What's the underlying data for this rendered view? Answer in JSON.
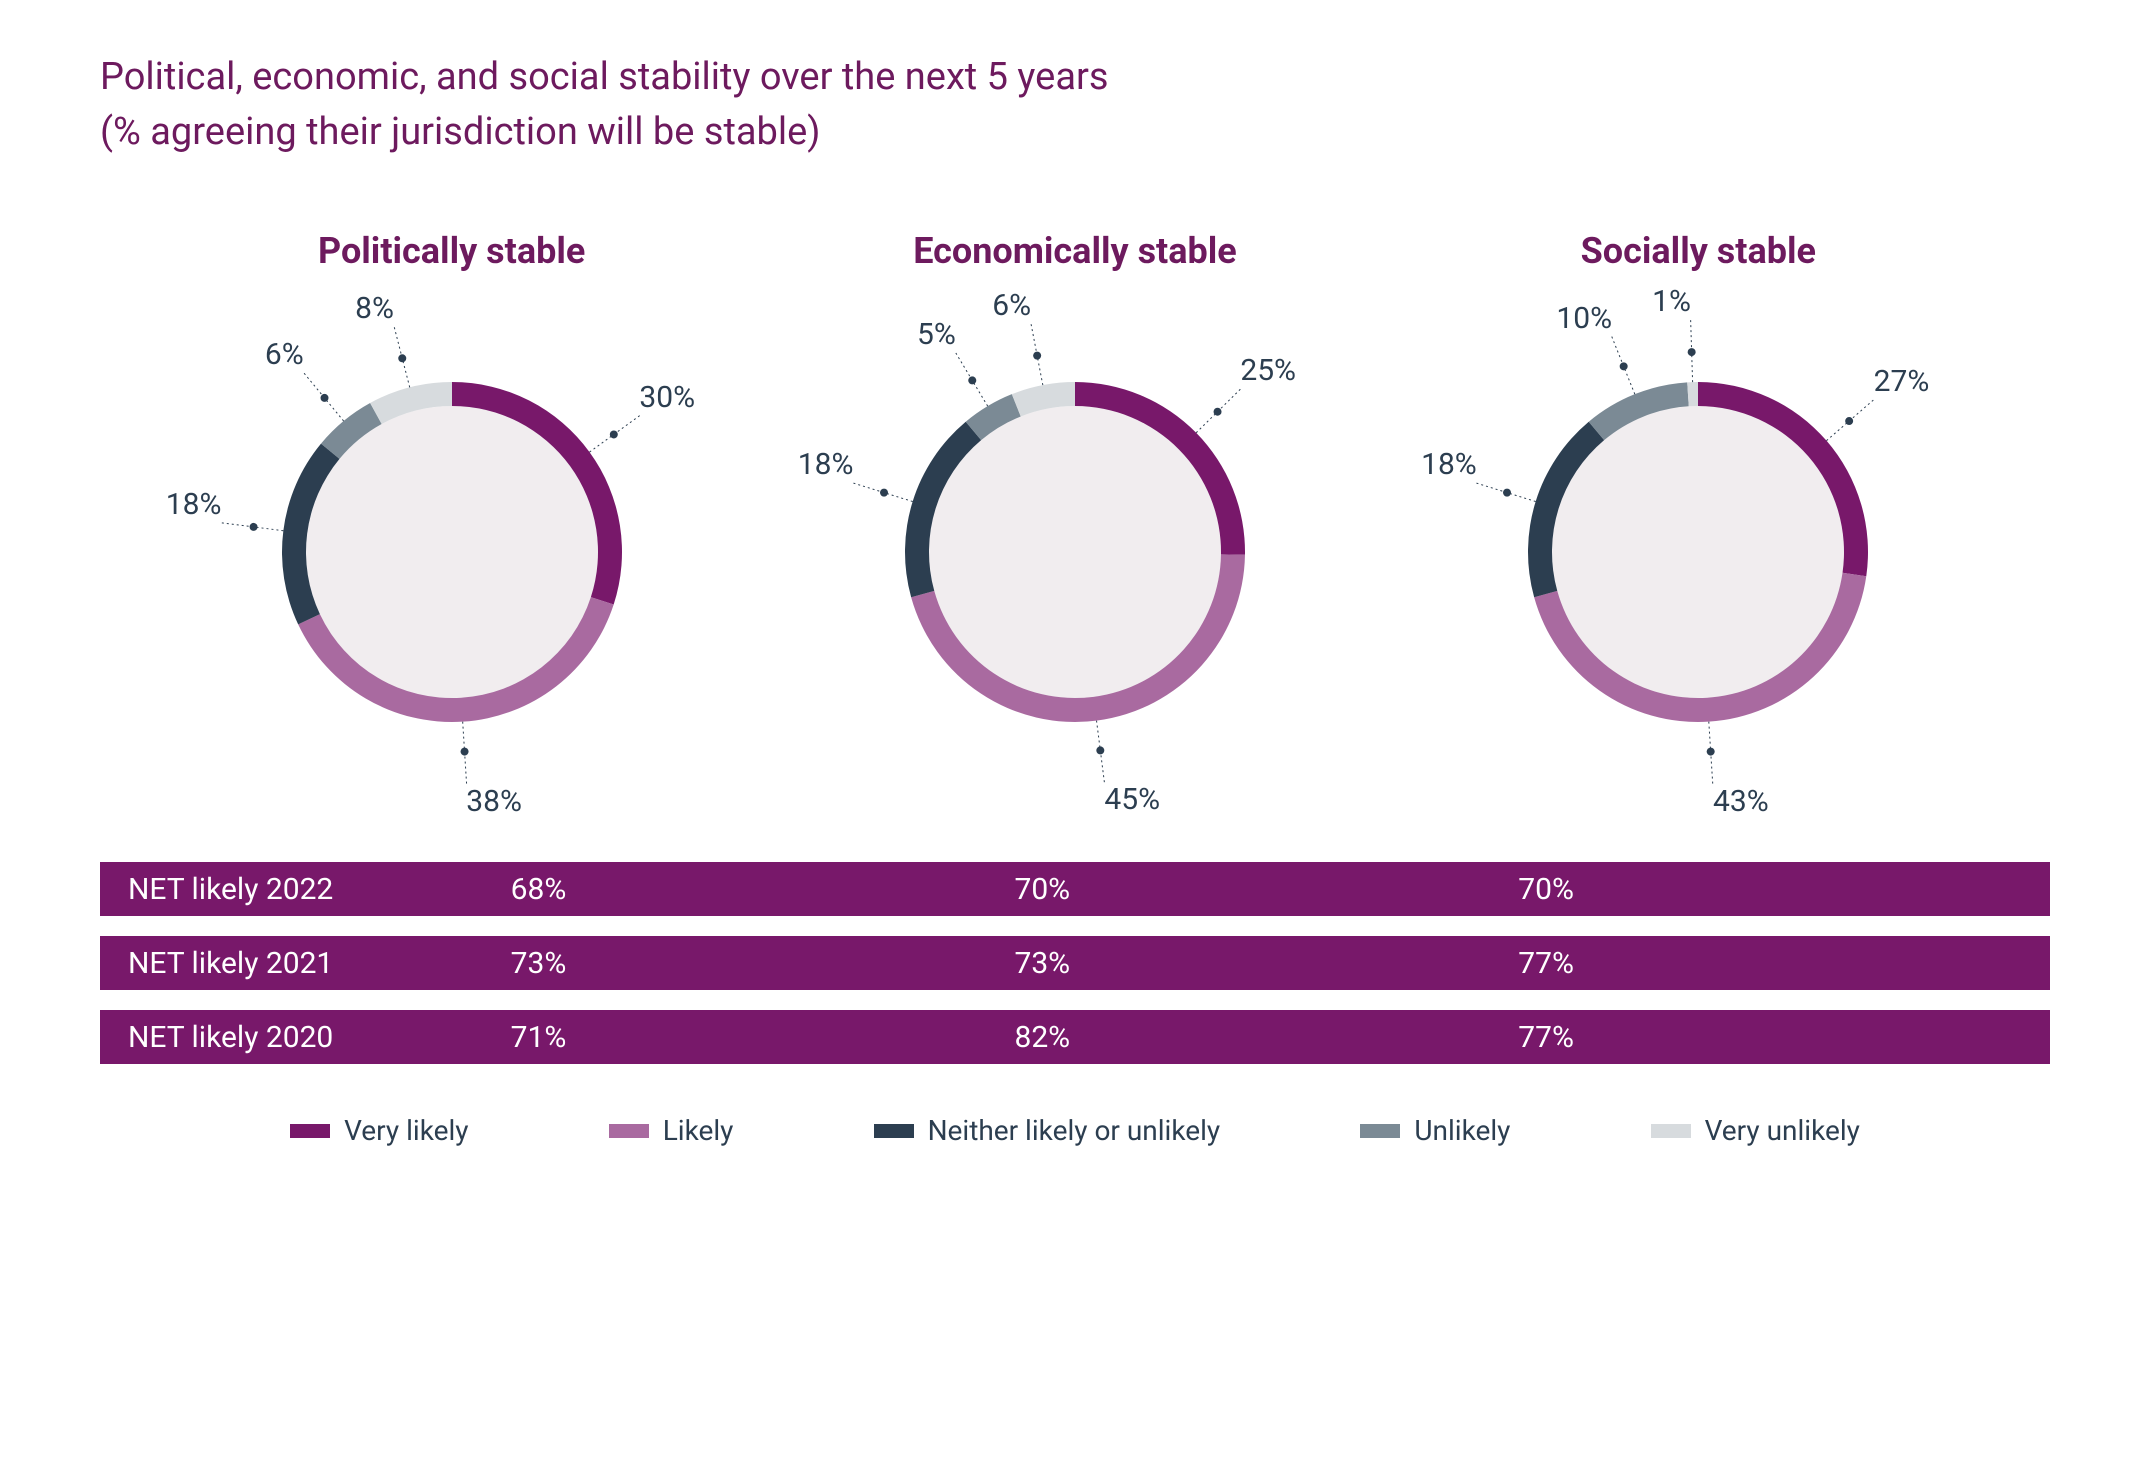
{
  "title_line1": "Political, economic, and social stability over the next 5 years",
  "title_line2": "(% agreeing their jurisdiction will be stable)",
  "title_color": "#6d1a5e",
  "chart_title_color": "#6d1a5e",
  "label_text_color": "#2c3e50",
  "background_color": "#ffffff",
  "donut_inner_color": "#f1edef",
  "leader_color": "#2c3e50",
  "categories": {
    "very_likely": {
      "label": "Very likely",
      "color": "#78186a"
    },
    "likely": {
      "label": "Likely",
      "color": "#a96aa0"
    },
    "neither": {
      "label": "Neither likely or unlikely",
      "color": "#2c3e50"
    },
    "unlikely": {
      "label": "Unlikely",
      "color": "#7b8a95"
    },
    "very_unlikely": {
      "label": "Very unlikely",
      "color": "#d7dbde"
    }
  },
  "charts": [
    {
      "title": "Politically stable",
      "segments": [
        {
          "cat": "very_likely",
          "value": 30,
          "label": "30%"
        },
        {
          "cat": "likely",
          "value": 38,
          "label": "38%"
        },
        {
          "cat": "neither",
          "value": 18,
          "label": "18%"
        },
        {
          "cat": "unlikely",
          "value": 6,
          "label": "6%"
        },
        {
          "cat": "very_unlikely",
          "value": 8,
          "label": "8%"
        }
      ]
    },
    {
      "title": "Economically stable",
      "segments": [
        {
          "cat": "very_likely",
          "value": 25,
          "label": "25%"
        },
        {
          "cat": "likely",
          "value": 45,
          "label": "45%"
        },
        {
          "cat": "neither",
          "value": 18,
          "label": "18%"
        },
        {
          "cat": "unlikely",
          "value": 5,
          "label": "5%"
        },
        {
          "cat": "very_unlikely",
          "value": 6,
          "label": "6%"
        }
      ]
    },
    {
      "title": "Socially stable",
      "segments": [
        {
          "cat": "very_likely",
          "value": 27,
          "label": "27%"
        },
        {
          "cat": "likely",
          "value": 43,
          "label": "43%"
        },
        {
          "cat": "neither",
          "value": 18,
          "label": "18%"
        },
        {
          "cat": "unlikely",
          "value": 10,
          "label": "10%"
        },
        {
          "cat": "very_unlikely",
          "value": 1,
          "label": "1%"
        }
      ]
    }
  ],
  "donut": {
    "outer_radius": 170,
    "inner_radius": 146,
    "ring_width": 24,
    "leader_inner": 30,
    "leader_outer": 62,
    "dot_radius": 4
  },
  "net_rows": [
    {
      "label": "NET likely 2022",
      "values": [
        "68%",
        "70%",
        "70%"
      ]
    },
    {
      "label": "NET likely 2021",
      "values": [
        "73%",
        "73%",
        "77%"
      ]
    },
    {
      "label": "NET likely 2020",
      "values": [
        "71%",
        "82%",
        "77%"
      ]
    }
  ],
  "net_row_bg": "#78186a",
  "net_row_text": "#ffffff",
  "legend_order": [
    "very_likely",
    "likely",
    "neither",
    "unlikely",
    "very_unlikely"
  ]
}
